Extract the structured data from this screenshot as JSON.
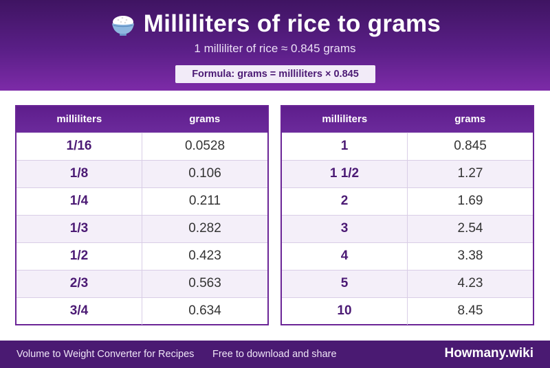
{
  "header": {
    "icon": "rice-bowl-icon",
    "title": "Milliliters of rice to grams",
    "subtitle": "1 milliliter of rice ≈ 0.845 grams",
    "formula": "Formula: grams = milliliters × 0.845"
  },
  "tables": [
    {
      "col_ml": "milliliters",
      "col_g": "grams",
      "rows": [
        {
          "ml": "1/16",
          "g": "0.0528"
        },
        {
          "ml": "1/8",
          "g": "0.106"
        },
        {
          "ml": "1/4",
          "g": "0.211"
        },
        {
          "ml": "1/3",
          "g": "0.282"
        },
        {
          "ml": "1/2",
          "g": "0.423"
        },
        {
          "ml": "2/3",
          "g": "0.563"
        },
        {
          "ml": "3/4",
          "g": "0.634"
        }
      ]
    },
    {
      "col_ml": "milliliters",
      "col_g": "grams",
      "rows": [
        {
          "ml": "1",
          "g": "0.845"
        },
        {
          "ml": "1 1/2",
          "g": "1.27"
        },
        {
          "ml": "2",
          "g": "1.69"
        },
        {
          "ml": "3",
          "g": "2.54"
        },
        {
          "ml": "4",
          "g": "3.38"
        },
        {
          "ml": "5",
          "g": "4.23"
        },
        {
          "ml": "10",
          "g": "8.45"
        }
      ]
    }
  ],
  "footer": {
    "left": "Volume to Weight Converter for Recipes",
    "left2": "Free to download and share",
    "brand": "Howmany.wiki"
  },
  "colors": {
    "primary": "#5a1f87",
    "header_dark": "#3f1462",
    "accent_light": "#f2ebf8",
    "footer": "#4a1a72"
  }
}
